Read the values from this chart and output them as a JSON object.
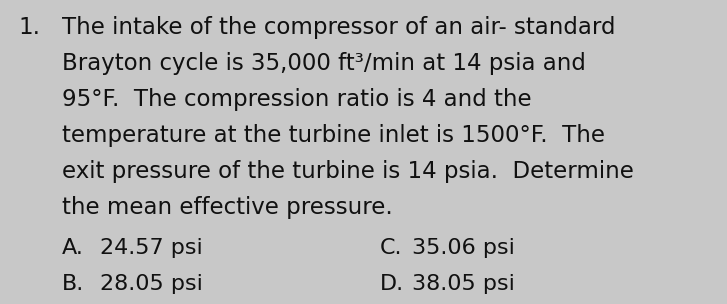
{
  "background_color": "#c8c8c8",
  "number": "1.",
  "line1": "The intake of the compressor of an air- standard",
  "line2": "Brayton cycle is 35,000 ft³/min at 14 psia and",
  "line3": "95°F.  The compression ratio is 4 and the",
  "line4": "temperature at the turbine inlet is 1500°F.  The",
  "line5": "exit pressure of the turbine is 14 psia.  Determine",
  "line6": "the mean effective pressure.",
  "choice_A_label": "A.",
  "choice_A_text": "24.57 psi",
  "choice_B_label": "B.",
  "choice_B_text": "28.05 psi",
  "choice_C_label": "C.",
  "choice_C_text": "35.06 psi",
  "choice_D_label": "D.",
  "choice_D_text": "38.05 psi",
  "text_color": "#111111",
  "font_size_body": 16.5,
  "font_size_choices": 16.0
}
